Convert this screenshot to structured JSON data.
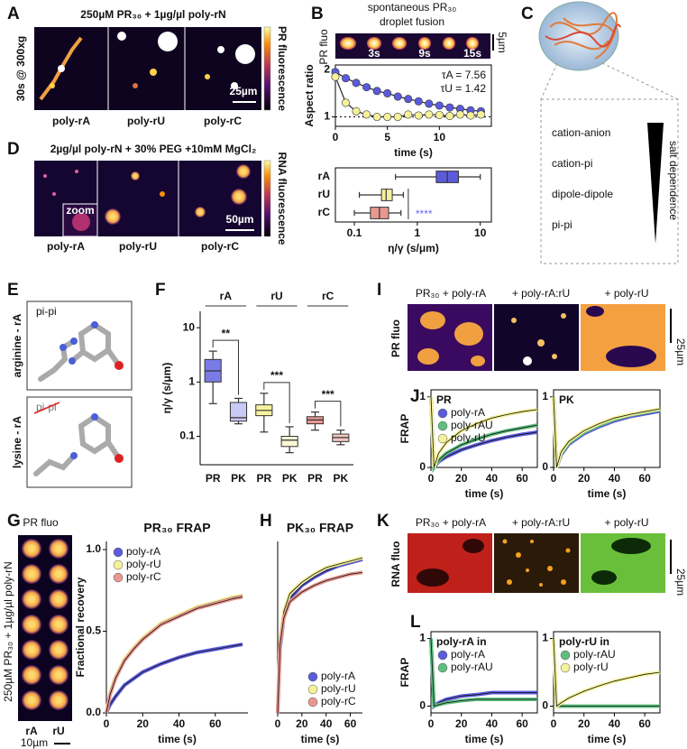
{
  "panel_letters": [
    "A",
    "B",
    "C",
    "D",
    "E",
    "F",
    "G",
    "H",
    "I",
    "J",
    "K",
    "L"
  ],
  "panel_a": {
    "title": "250µM PR₃₀ + 1µg/µl poly-rN",
    "side_label": "30s @ 300xg",
    "image_labels": [
      "poly-rA",
      "poly-rU",
      "poly-rC"
    ],
    "colorbar_label": "PR fluorescence",
    "scale_bar": "25µm"
  },
  "panel_b": {
    "title": [
      "spontaneous PR₃₀",
      "droplet fusion"
    ],
    "side_label": "PR fluo",
    "frame_labels": [
      "3s",
      "9s",
      "15s"
    ],
    "scale_bar": "5µm"
  },
  "panel_c": {
    "interactions": [
      "cation-anion",
      "cation-pi",
      "dipole-dipole",
      "pi-pi"
    ],
    "gradient_label": "salt dependence"
  },
  "panel_d": {
    "title": "2µg/µl poly-rN + 30% PEG +10mM MgCl₂",
    "inset_label": "zoom",
    "image_labels": [
      "poly-rA",
      "poly-rU",
      "poly-rC"
    ],
    "colorbar_label": "RNA fluorescence",
    "scale_bar": "50µm"
  },
  "panel_e": {
    "labels": [
      "pi-pi",
      "pi-pi"
    ],
    "side_labels": [
      "arginine - rA",
      "lysine - rA"
    ]
  },
  "panel_g": {
    "side_label": "PR fluo",
    "rotated_label": "250µM PR₃₀ + 1µg/µl poly-rN",
    "image_labels": [
      "rA",
      "rU"
    ],
    "scale_bar": "10µm"
  },
  "panel_i": {
    "image_labels": [
      "PR₃₀ + poly-rA",
      "+ poly-rA:rU",
      "+ poly-rU"
    ],
    "side_label": "PR fluo",
    "scale_bar": "25µm"
  },
  "panel_k": {
    "image_labels": [
      "PR₃₀ + poly-rA",
      "+ poly-rA:rU",
      "+ poly-rU"
    ],
    "side_label": "RNA fluo",
    "scale_bar": "25µm"
  },
  "chart_data": [
    {
      "type": "line",
      "markers": true,
      "xlabel": "time (s)",
      "ylabel": "Aspect ratio",
      "x": [
        0,
        1,
        2,
        3,
        4,
        5,
        6,
        7,
        8,
        9,
        10,
        11,
        12,
        13,
        14
      ],
      "xlim": [
        0,
        15
      ],
      "ylim": [
        0.8,
        2.1
      ],
      "xticks": [
        0,
        5,
        10
      ],
      "yticks": [
        1,
        2
      ],
      "hline": 1,
      "annotations": [
        "τA = 7.56",
        "τU = 1.42"
      ],
      "series": [
        {
          "color": "#5b5bdc",
          "values": [
            1.95,
            1.82,
            1.72,
            1.63,
            1.55,
            1.5,
            1.43,
            1.38,
            1.33,
            1.28,
            1.24,
            1.2,
            1.17,
            1.14,
            1.12
          ]
        },
        {
          "color": "#f5f19a",
          "values": [
            1.85,
            1.3,
            1.12,
            1.05,
            1.0,
            1.0,
            1.0,
            1.05,
            1.03,
            1.05,
            1.04,
            1.02,
            1.05,
            1.03,
            1.05
          ]
        }
      ]
    },
    {
      "type": "box",
      "orientation": "horizontal",
      "log": true,
      "xlabel": "η/γ (s/μm)",
      "categories": [
        "rA",
        "rU",
        "rC"
      ],
      "colors": [
        "#5b5bdc",
        "#f5f19a",
        "#e89890"
      ],
      "lim": [
        0.05,
        15
      ],
      "ticks": [
        0.1,
        1,
        10
      ],
      "significance": "****",
      "significance_color": "#6a6af0",
      "stats": [
        [
          0.45,
          2,
          3,
          4.5,
          10
        ],
        [
          0.12,
          0.27,
          0.32,
          0.4,
          0.6
        ],
        [
          0.1,
          0.18,
          0.25,
          0.35,
          0.55
        ]
      ]
    },
    {
      "type": "box",
      "orientation": "vertical",
      "log": true,
      "ylabel": "η/γ (s/μm)",
      "categories": [
        "PR",
        "PK",
        "PR",
        "PK",
        "PR",
        "PK"
      ],
      "groups": [
        "rA",
        "rU",
        "rC"
      ],
      "significance": [
        "**",
        "***",
        "***"
      ],
      "colors": [
        "#7b7be8",
        "#c9c9f5",
        "#f7f3a0",
        "#fbf9d4",
        "#e89890",
        "#f5c8c2"
      ],
      "lim": [
        0.03,
        20
      ],
      "ticks": [
        0.1,
        1,
        10
      ],
      "stats": [
        [
          0.4,
          1,
          1.6,
          2.6,
          3.7
        ],
        [
          0.17,
          0.19,
          0.22,
          0.42,
          0.5
        ],
        [
          0.12,
          0.24,
          0.3,
          0.38,
          0.62
        ],
        [
          0.05,
          0.065,
          0.085,
          0.1,
          0.15
        ],
        [
          0.13,
          0.17,
          0.2,
          0.23,
          0.28
        ],
        [
          0.07,
          0.08,
          0.095,
          0.11,
          0.13
        ]
      ]
    },
    {
      "type": "line",
      "ylabel": "FRAP",
      "xlabel": "time (s)",
      "legend": "upper left",
      "legend_title": "PR",
      "x": [
        0,
        2,
        5,
        10,
        20,
        30,
        40,
        50,
        60,
        70
      ],
      "xlim": [
        0,
        70
      ],
      "ylim": [
        0,
        1.1
      ],
      "xticks": [
        0,
        20,
        40,
        60
      ],
      "yticks": [
        0,
        1
      ],
      "series": [
        {
          "name": "poly-rA",
          "color": "#5b5bdc",
          "values": [
            1,
            0,
            0.08,
            0.15,
            0.25,
            0.32,
            0.38,
            0.43,
            0.47,
            0.5
          ]
        },
        {
          "name": "poly-rAU",
          "color": "#5fbf7f",
          "values": [
            1,
            0,
            0.1,
            0.2,
            0.32,
            0.4,
            0.47,
            0.52,
            0.56,
            0.6
          ]
        },
        {
          "name": "poly-rU",
          "color": "#f5f19a",
          "values": [
            1,
            0,
            0.2,
            0.35,
            0.52,
            0.62,
            0.7,
            0.75,
            0.79,
            0.82
          ]
        }
      ]
    },
    {
      "type": "line",
      "xlabel": "time (s)",
      "legend_title": "PK",
      "x": [
        0,
        2,
        5,
        10,
        20,
        30,
        40,
        50,
        60,
        70
      ],
      "xlim": [
        0,
        70
      ],
      "ylim": [
        0,
        1.1
      ],
      "xticks": [
        0,
        20,
        40,
        60
      ],
      "yticks": [
        0,
        1
      ],
      "series": [
        {
          "color": "#5b5bdc",
          "values": [
            1,
            0,
            0.18,
            0.33,
            0.48,
            0.58,
            0.66,
            0.72,
            0.76,
            0.8
          ]
        },
        {
          "color": "#5fbf7f",
          "values": [
            1,
            0,
            0.2,
            0.35,
            0.5,
            0.6,
            0.68,
            0.74,
            0.78,
            0.82
          ]
        },
        {
          "color": "#f5f19a",
          "values": [
            1,
            0,
            0.22,
            0.37,
            0.52,
            0.62,
            0.7,
            0.75,
            0.79,
            0.83
          ]
        }
      ]
    },
    {
      "type": "line",
      "title": "PR₃₀ FRAP",
      "xlabel": "time (s)",
      "ylabel": "Fractional recovery",
      "legend": "upper left",
      "x": [
        0,
        2,
        5,
        10,
        15,
        20,
        30,
        40,
        50,
        60,
        70,
        75
      ],
      "xlim": [
        0,
        78
      ],
      "ylim": [
        0,
        1.05
      ],
      "xticks": [
        0,
        20,
        40,
        60
      ],
      "yticks": [
        {
          "value": 0,
          "label": "0.0"
        },
        {
          "value": 0.5,
          "label": "0.5"
        },
        {
          "value": 1,
          "label": "1.0"
        }
      ],
      "series": [
        {
          "name": "poly-rA",
          "color": "#5b5bdc",
          "values": [
            0,
            0.05,
            0.1,
            0.17,
            0.21,
            0.25,
            0.3,
            0.34,
            0.37,
            0.39,
            0.41,
            0.42
          ]
        },
        {
          "name": "poly-rU",
          "color": "#f5f19a",
          "values": [
            0,
            0.12,
            0.22,
            0.33,
            0.4,
            0.46,
            0.55,
            0.6,
            0.65,
            0.68,
            0.71,
            0.72
          ]
        },
        {
          "name": "poly-rC",
          "color": "#e89890",
          "values": [
            0,
            0.11,
            0.21,
            0.32,
            0.39,
            0.45,
            0.54,
            0.59,
            0.64,
            0.67,
            0.7,
            0.71
          ]
        }
      ]
    },
    {
      "type": "line",
      "title": "PK₃₀ FRAP",
      "xlabel": "time (s)",
      "legend": "lower right",
      "x": [
        0,
        2,
        5,
        10,
        20,
        30,
        40,
        50,
        60,
        70
      ],
      "xlim": [
        0,
        70
      ],
      "ylim": [
        0,
        1.05
      ],
      "xticks": [
        0,
        20,
        40,
        60
      ],
      "series": [
        {
          "name": "poly-rA",
          "color": "#5b5bdc",
          "values": [
            0,
            0.4,
            0.58,
            0.7,
            0.78,
            0.83,
            0.87,
            0.9,
            0.92,
            0.94
          ]
        },
        {
          "name": "poly-rU",
          "color": "#f5f19a",
          "values": [
            0,
            0.45,
            0.62,
            0.73,
            0.8,
            0.85,
            0.89,
            0.91,
            0.93,
            0.95
          ]
        },
        {
          "name": "poly-rC",
          "color": "#e89890",
          "values": [
            0,
            0.42,
            0.58,
            0.68,
            0.74,
            0.78,
            0.81,
            0.83,
            0.85,
            0.86
          ]
        }
      ]
    },
    {
      "type": "line",
      "ylabel": "FRAP",
      "xlabel": "time (s)",
      "legend": "upper left",
      "legend_title": "poly-rA in",
      "x": [
        0,
        2,
        5,
        10,
        20,
        30,
        40,
        50,
        60,
        70
      ],
      "xlim": [
        0,
        70
      ],
      "ylim": [
        -0.1,
        1.1
      ],
      "xticks": [
        0,
        20,
        40,
        60
      ],
      "yticks": [
        0,
        1
      ],
      "series": [
        {
          "name": "poly-rA",
          "color": "#5b5bdc",
          "values": [
            1,
            0,
            0.05,
            0.1,
            0.15,
            0.17,
            0.2,
            0.2,
            0.2,
            0.2
          ]
        },
        {
          "name": "poly-rAU",
          "color": "#5fbf7f",
          "values": [
            1,
            0,
            0.02,
            0.05,
            0.08,
            0.1,
            0.1,
            0.1,
            0.1,
            0.1
          ]
        }
      ]
    },
    {
      "type": "line",
      "xlabel": "time (s)",
      "legend": "upper left",
      "legend_title": "poly-rU in",
      "x": [
        0,
        2,
        5,
        10,
        20,
        30,
        40,
        50,
        60,
        70
      ],
      "xlim": [
        0,
        70
      ],
      "ylim": [
        -0.1,
        1.1
      ],
      "xticks": [
        0,
        20,
        40,
        60
      ],
      "yticks": [
        0,
        1
      ],
      "series": [
        {
          "name": "poly-rAU",
          "color": "#5fbf7f",
          "values": [
            1,
            0,
            0,
            0,
            0,
            0,
            0,
            0,
            0,
            0
          ]
        },
        {
          "name": "poly-rU",
          "color": "#f5f19a",
          "values": [
            1,
            0,
            0.05,
            0.12,
            0.22,
            0.3,
            0.37,
            0.42,
            0.47,
            0.5
          ]
        }
      ]
    }
  ]
}
